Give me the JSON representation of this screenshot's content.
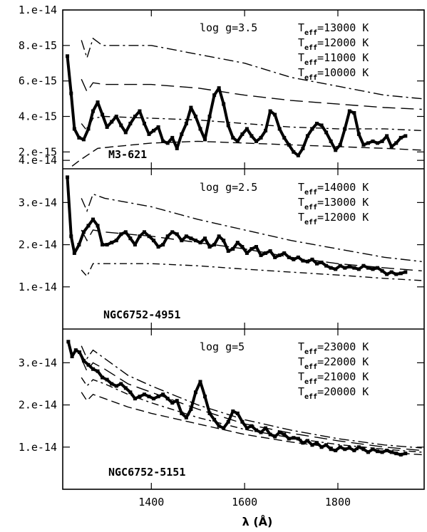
{
  "chart_data": {
    "type": "line",
    "xlabel": "λ (Å)",
    "xlim": [
      1210,
      1985
    ],
    "x_ticks": [
      1400,
      1600,
      1800
    ],
    "panels": [
      {
        "star": "M3-621",
        "log_g": "log g=3.5",
        "ylim": [
          1.05e-15,
          1e-14
        ],
        "y_ticks": [
          2e-15,
          4e-15,
          6e-15,
          8e-15,
          1e-14
        ],
        "y_tick_labels": [
          "2.e-15",
          "4.e-15",
          "6.e-15",
          "8.e-15",
          "1.e-14"
        ],
        "observed": {
          "x": [
            1220,
            1228,
            1235,
            1245,
            1255,
            1265,
            1275,
            1285,
            1295,
            1305,
            1315,
            1325,
            1335,
            1345,
            1355,
            1365,
            1375,
            1385,
            1395,
            1405,
            1415,
            1425,
            1435,
            1445,
            1455,
            1465,
            1475,
            1485,
            1495,
            1505,
            1515,
            1525,
            1535,
            1545,
            1555,
            1565,
            1575,
            1585,
            1595,
            1605,
            1615,
            1625,
            1635,
            1645,
            1655,
            1665,
            1675,
            1685,
            1695,
            1705,
            1715,
            1725,
            1735,
            1745,
            1755,
            1765,
            1775,
            1785,
            1795,
            1805,
            1815,
            1825,
            1835,
            1845,
            1855,
            1865,
            1875,
            1885,
            1895,
            1905,
            1915,
            1925,
            1935,
            1945
          ],
          "y": [
            7.4e-15,
            5.3e-15,
            3.3e-15,
            2.8e-15,
            2.7e-15,
            3.3e-15,
            4.3e-15,
            4.8e-15,
            4.1e-15,
            3.4e-15,
            3.7e-15,
            4e-15,
            3.5e-15,
            3.1e-15,
            3.6e-15,
            4e-15,
            4.3e-15,
            3.6e-15,
            3e-15,
            3.2e-15,
            3.4e-15,
            2.6e-15,
            2.5e-15,
            2.8e-15,
            2.2e-15,
            3e-15,
            3.6e-15,
            4.5e-15,
            4e-15,
            3.3e-15,
            2.7e-15,
            4e-15,
            5.2e-15,
            5.6e-15,
            4.7e-15,
            3.5e-15,
            2.8e-15,
            2.6e-15,
            3e-15,
            3.3e-15,
            2.9e-15,
            2.6e-15,
            2.8e-15,
            3.2e-15,
            4.3e-15,
            4.1e-15,
            3.3e-15,
            2.8e-15,
            2.4e-15,
            2e-15,
            1.8e-15,
            2.2e-15,
            2.9e-15,
            3.3e-15,
            3.6e-15,
            3.5e-15,
            3.1e-15,
            2.6e-15,
            2.1e-15,
            2.4e-15,
            3.3e-15,
            4.3e-15,
            4.2e-15,
            3e-15,
            2.4e-15,
            2.5e-15,
            2.6e-15,
            2.5e-15,
            2.6e-15,
            2.9e-15,
            2.3e-15,
            2.5e-15,
            2.8e-15,
            2.9e-15
          ]
        },
        "models": [
          {
            "label": "=13000 K",
            "x": [
              1250,
              1262,
              1275,
              1295,
              1400,
              1500,
              1600,
              1700,
              1800,
              1900,
              1980
            ],
            "y": [
              8.3e-15,
              7.3e-15,
              8.4e-15,
              8e-15,
              8e-15,
              7.5e-15,
              7e-15,
              6.2e-15,
              5.7e-15,
              5.2e-15,
              5e-15
            ]
          },
          {
            "label": "=12000 K",
            "x": [
              1250,
              1262,
              1275,
              1300,
              1400,
              1500,
              1600,
              1700,
              1800,
              1900,
              1980
            ],
            "y": [
              6.1e-15,
              5.4e-15,
              5.9e-15,
              5.8e-15,
              5.8e-15,
              5.6e-15,
              5.2e-15,
              4.9e-15,
              4.7e-15,
              4.5e-15,
              4.4e-15
            ]
          },
          {
            "label": "=11000 K",
            "x": [
              1250,
              1262,
              1275,
              1300,
              1400,
              1500,
              1600,
              1700,
              1800,
              1900,
              1980
            ],
            "y": [
              3.6e-15,
              3.2e-15,
              3.9e-15,
              4e-15,
              3.9e-15,
              3.8e-15,
              3.6e-15,
              3.4e-15,
              3.3e-15,
              3.3e-15,
              3.2e-15
            ]
          },
          {
            "label": "=10000 K",
            "x": [
              1230,
              1245,
              1262,
              1285,
              1320,
              1400,
              1500,
              1600,
              1700,
              1800,
              1900,
              1980
            ],
            "y": [
              1.2e-15,
              1.5e-15,
              1.8e-15,
              2.2e-15,
              2.3e-15,
              2.5e-15,
              2.6e-15,
              2.5e-15,
              2.4e-15,
              2.3e-15,
              2.2e-15,
              2.1e-15
            ]
          }
        ]
      },
      {
        "star": "NGC6752-4951",
        "log_g": "log g=2.5",
        "ylim": [
          0.0,
          3.8e-14
        ],
        "y_ticks": [
          1e-14,
          2e-14,
          3e-14,
          4e-14
        ],
        "y_tick_labels": [
          "1.e-14",
          "2.e-14",
          "3.e-14",
          "4.e-14"
        ],
        "observed": {
          "x": [
            1220,
            1228,
            1235,
            1245,
            1255,
            1265,
            1275,
            1285,
            1295,
            1305,
            1315,
            1325,
            1335,
            1345,
            1355,
            1365,
            1375,
            1385,
            1395,
            1405,
            1415,
            1425,
            1435,
            1445,
            1455,
            1465,
            1475,
            1485,
            1495,
            1505,
            1515,
            1525,
            1535,
            1545,
            1555,
            1565,
            1575,
            1585,
            1595,
            1605,
            1615,
            1625,
            1635,
            1645,
            1655,
            1665,
            1675,
            1685,
            1695,
            1705,
            1715,
            1725,
            1735,
            1745,
            1755,
            1765,
            1775,
            1785,
            1795,
            1805,
            1815,
            1825,
            1835,
            1845,
            1855,
            1865,
            1875,
            1885,
            1895,
            1905,
            1915,
            1925,
            1935,
            1945
          ],
          "y": [
            3.6e-14,
            2.2e-14,
            1.8e-14,
            2e-14,
            2.3e-14,
            2.45e-14,
            2.6e-14,
            2.45e-14,
            2e-14,
            2e-14,
            2.05e-14,
            2.1e-14,
            2.25e-14,
            2.3e-14,
            2.15e-14,
            2e-14,
            2.2e-14,
            2.3e-14,
            2.2e-14,
            2.1e-14,
            1.95e-14,
            2e-14,
            2.2e-14,
            2.3e-14,
            2.25e-14,
            2.1e-14,
            2.2e-14,
            2.15e-14,
            2.1e-14,
            2.05e-14,
            2.15e-14,
            1.95e-14,
            2e-14,
            2.2e-14,
            2.1e-14,
            1.85e-14,
            1.9e-14,
            2.05e-14,
            1.95e-14,
            1.8e-14,
            1.9e-14,
            1.95e-14,
            1.75e-14,
            1.8e-14,
            1.85e-14,
            1.7e-14,
            1.75e-14,
            1.8e-14,
            1.7e-14,
            1.65e-14,
            1.7e-14,
            1.62e-14,
            1.6e-14,
            1.65e-14,
            1.55e-14,
            1.58e-14,
            1.5e-14,
            1.45e-14,
            1.42e-14,
            1.5e-14,
            1.45e-14,
            1.48e-14,
            1.45e-14,
            1.42e-14,
            1.5e-14,
            1.45e-14,
            1.42e-14,
            1.45e-14,
            1.38e-14,
            1.3e-14,
            1.35e-14,
            1.3e-14,
            1.32e-14,
            1.35e-14
          ]
        },
        "models": [
          {
            "label": "=14000 K",
            "x": [
              1250,
              1262,
              1275,
              1300,
              1400,
              1500,
              1600,
              1700,
              1800,
              1900,
              1980
            ],
            "y": [
              3.1e-14,
              2.8e-14,
              3.2e-14,
              3.1e-14,
              2.9e-14,
              2.6e-14,
              2.35e-14,
              2.1e-14,
              1.9e-14,
              1.7e-14,
              1.6e-14
            ]
          },
          {
            "label": "=13000 K",
            "x": [
              1250,
              1262,
              1275,
              1300,
              1400,
              1500,
              1600,
              1700,
              1800,
              1900,
              1980
            ],
            "y": [
              2.35e-14,
              2.1e-14,
              2.35e-14,
              2.3e-14,
              2.2e-14,
              2.05e-14,
              1.9e-14,
              1.7e-14,
              1.55e-14,
              1.45e-14,
              1.38e-14
            ]
          },
          {
            "label": "=12000 K",
            "x": [
              1250,
              1262,
              1275,
              1300,
              1400,
              1500,
              1600,
              1700,
              1800,
              1900,
              1980
            ],
            "y": [
              1.4e-14,
              1.25e-14,
              1.55e-14,
              1.55e-14,
              1.55e-14,
              1.5e-14,
              1.42e-14,
              1.35e-14,
              1.28e-14,
              1.2e-14,
              1.15e-14
            ]
          }
        ]
      },
      {
        "star": "NGC6752-5151",
        "log_g": "log g=5",
        "ylim": [
          0.0,
          3.8e-14
        ],
        "y_ticks": [
          1e-14,
          2e-14,
          3e-14
        ],
        "y_tick_labels": [
          "1.e-14",
          "2.e-14",
          "3.e-14"
        ],
        "observed": {
          "x": [
            1222,
            1230,
            1238,
            1246,
            1255,
            1265,
            1275,
            1285,
            1295,
            1305,
            1315,
            1325,
            1335,
            1345,
            1355,
            1365,
            1375,
            1385,
            1395,
            1405,
            1415,
            1425,
            1435,
            1445,
            1455,
            1465,
            1475,
            1485,
            1495,
            1505,
            1515,
            1525,
            1535,
            1545,
            1555,
            1565,
            1575,
            1585,
            1595,
            1605,
            1615,
            1625,
            1635,
            1645,
            1655,
            1665,
            1675,
            1685,
            1695,
            1705,
            1715,
            1725,
            1735,
            1745,
            1755,
            1765,
            1775,
            1785,
            1795,
            1805,
            1815,
            1825,
            1835,
            1845,
            1855,
            1865,
            1875,
            1885,
            1895,
            1905,
            1915,
            1925,
            1935,
            1945
          ],
          "y": [
            3.5e-14,
            3.15e-14,
            3.3e-14,
            3.25e-14,
            3.05e-14,
            2.95e-14,
            2.85e-14,
            2.8e-14,
            2.65e-14,
            2.6e-14,
            2.5e-14,
            2.45e-14,
            2.5e-14,
            2.4e-14,
            2.3e-14,
            2.15e-14,
            2.2e-14,
            2.25e-14,
            2.2e-14,
            2.15e-14,
            2.2e-14,
            2.25e-14,
            2.15e-14,
            2.05e-14,
            2.1e-14,
            1.8e-14,
            1.7e-14,
            1.9e-14,
            2.3e-14,
            2.55e-14,
            2.2e-14,
            1.8e-14,
            1.65e-14,
            1.5e-14,
            1.45e-14,
            1.6e-14,
            1.85e-14,
            1.8e-14,
            1.6e-14,
            1.45e-14,
            1.5e-14,
            1.4e-14,
            1.35e-14,
            1.45e-14,
            1.3e-14,
            1.25e-14,
            1.35e-14,
            1.3e-14,
            1.2e-14,
            1.22e-14,
            1.2e-14,
            1.1e-14,
            1.15e-14,
            1.05e-14,
            1.1e-14,
            1e-14,
            1.05e-14,
            9.5e-15,
            9.2e-15,
            1e-14,
            9.5e-15,
            9.8e-15,
            9.2e-15,
            1e-14,
            9.5e-15,
            8.8e-15,
            9.5e-15,
            9e-15,
            8.8e-15,
            9.2e-15,
            8.8e-15,
            8.5e-15,
            8.2e-15,
            8.5e-15
          ]
        },
        "models": [
          {
            "label": "=23000 K",
            "x": [
              1250,
              1262,
              1275,
              1300,
              1350,
              1400,
              1500,
              1600,
              1700,
              1800,
              1900,
              1980
            ],
            "y": [
              3.4e-14,
              3.1e-14,
              3.3e-14,
              3.1e-14,
              2.7e-14,
              2.45e-14,
              2e-14,
              1.65e-14,
              1.4e-14,
              1.2e-14,
              1.05e-14,
              9.8e-15
            ]
          },
          {
            "label": "=22000 K",
            "x": [
              1250,
              1262,
              1275,
              1300,
              1350,
              1400,
              1500,
              1600,
              1700,
              1800,
              1900,
              1980
            ],
            "y": [
              3.1e-14,
              2.8e-14,
              3e-14,
              2.85e-14,
              2.5e-14,
              2.3e-14,
              1.9e-14,
              1.55e-14,
              1.33e-14,
              1.15e-14,
              1e-14,
              9.2e-15
            ]
          },
          {
            "label": "=21000 K",
            "x": [
              1250,
              1262,
              1275,
              1300,
              1350,
              1400,
              1500,
              1600,
              1700,
              1800,
              1900,
              1980
            ],
            "y": [
              2.65e-14,
              2.45e-14,
              2.6e-14,
              2.5e-14,
              2.25e-14,
              2.05e-14,
              1.7e-14,
              1.42e-14,
              1.22e-14,
              1.06e-14,
              9.5e-15,
              8.8e-15
            ]
          },
          {
            "label": "=20000 K",
            "x": [
              1250,
              1262,
              1275,
              1300,
              1350,
              1400,
              1500,
              1600,
              1700,
              1800,
              1900,
              1980
            ],
            "y": [
              2.3e-14,
              2.1e-14,
              2.25e-14,
              2.15e-14,
              1.95e-14,
              1.8e-14,
              1.55e-14,
              1.3e-14,
              1.12e-14,
              9.8e-15,
              8.8e-15,
              8.2e-15
            ]
          }
        ]
      }
    ]
  }
}
